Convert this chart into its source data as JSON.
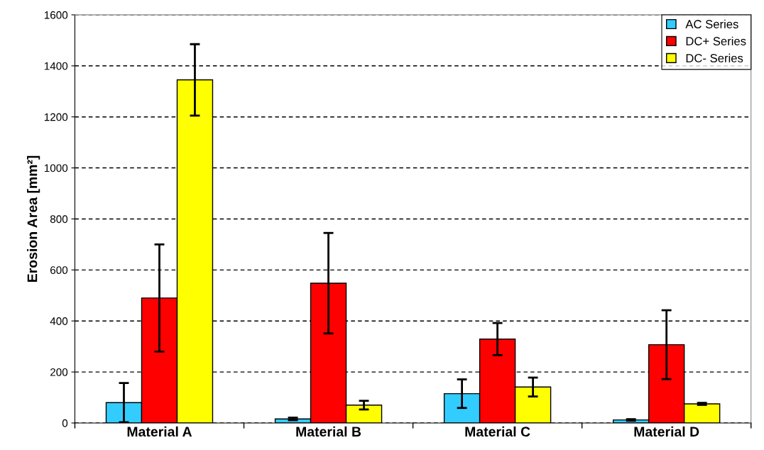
{
  "chart_data": {
    "type": "bar",
    "ylabel": "Erosion Area [mm²]",
    "categories": [
      "Material A",
      "Material B",
      "Material C",
      "Material D"
    ],
    "series": [
      {
        "name": "AC Series",
        "color": "#33ccff",
        "values": [
          80,
          16,
          115,
          12
        ],
        "errors": [
          77,
          5,
          56,
          3
        ]
      },
      {
        "name": "DC+ Series",
        "color": "#ff0000",
        "values": [
          490,
          548,
          329,
          307
        ],
        "errors": [
          210,
          197,
          63,
          135
        ]
      },
      {
        "name": "DC- Series",
        "color": "#ffff00",
        "values": [
          1345,
          70,
          141,
          75
        ],
        "errors": [
          140,
          17,
          37,
          4
        ]
      }
    ],
    "ylim": [
      0,
      1600
    ],
    "yticks": [
      0,
      200,
      400,
      600,
      800,
      1000,
      1200,
      1400,
      1600
    ],
    "grid": "y",
    "legend": "top right"
  }
}
